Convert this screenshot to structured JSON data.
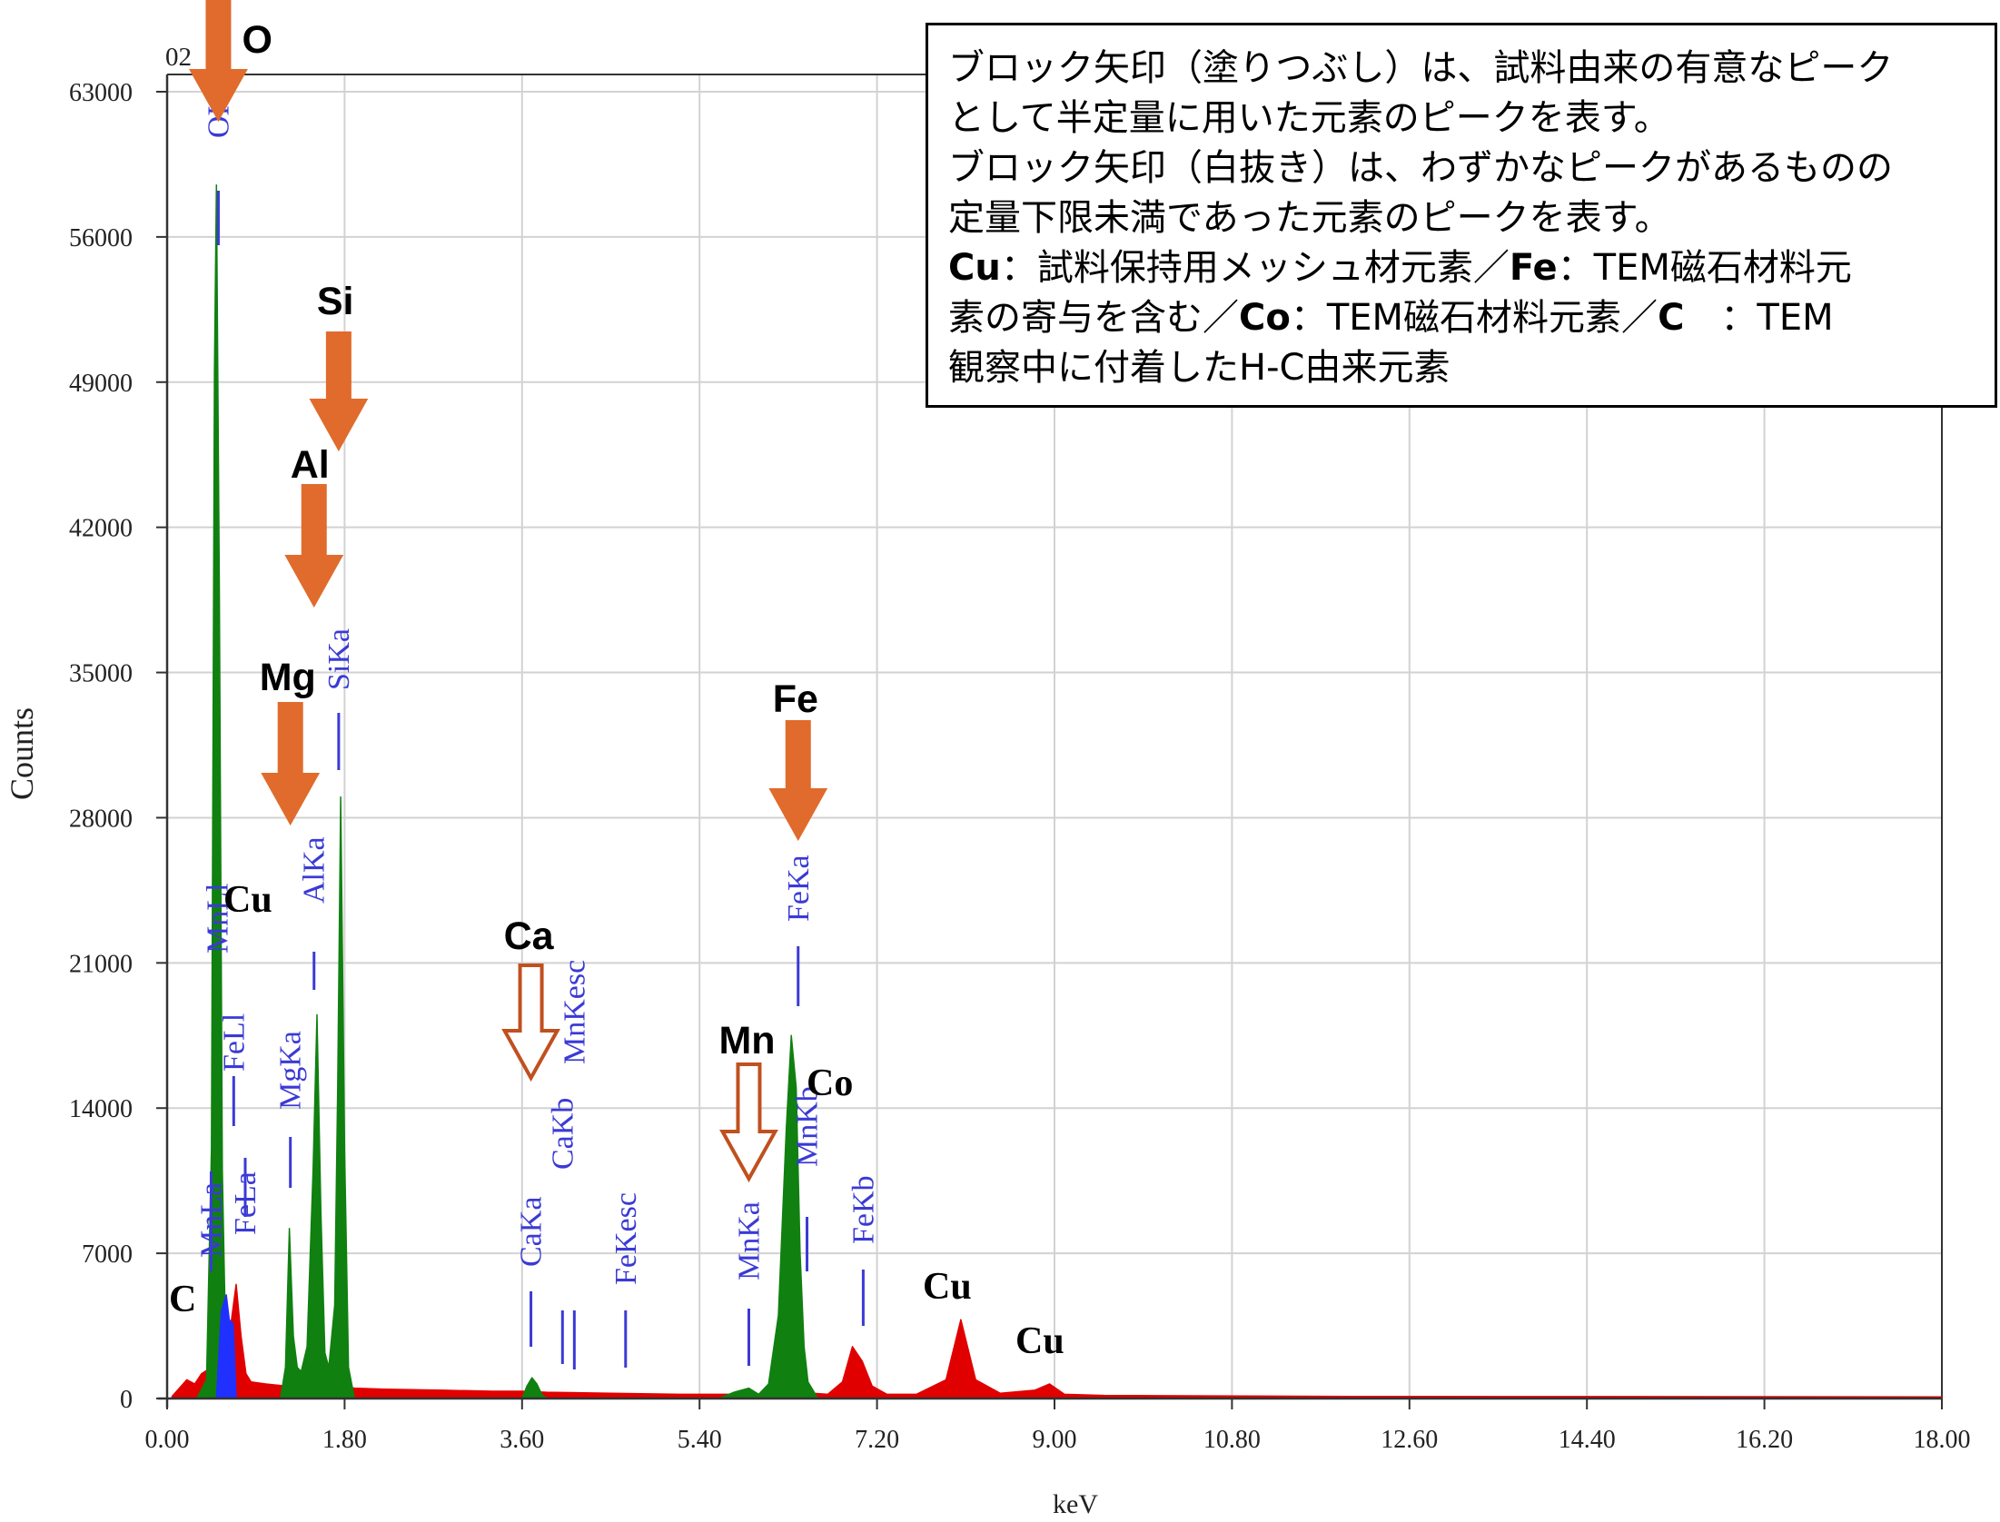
{
  "chart_data": {
    "type": "area",
    "xlabel": "keV",
    "ylabel": "Counts",
    "corner_label": "02",
    "xlim": [
      0,
      18
    ],
    "ylim": [
      0,
      63000
    ],
    "x_ticks": [
      "0.00",
      "1.80",
      "3.60",
      "5.40",
      "7.20",
      "9.00",
      "10.80",
      "12.60",
      "14.40",
      "16.20",
      "18.00"
    ],
    "y_ticks": [
      "0",
      "7000",
      "14000",
      "21000",
      "28000",
      "35000",
      "42000",
      "49000",
      "56000",
      "63000"
    ],
    "grid": true,
    "series": [
      {
        "color": "#e00000",
        "x": [
          0.05,
          0.2,
          0.28,
          0.35,
          0.45,
          0.55,
          0.62,
          0.7,
          0.75,
          0.8,
          0.85,
          1.0,
          1.2,
          1.35,
          1.55,
          1.75,
          1.9,
          2.2,
          2.8,
          3.3,
          3.6,
          3.85,
          4.5,
          5.2,
          5.7,
          5.85,
          6.0,
          6.2,
          6.35,
          6.45,
          6.55,
          6.7,
          6.85,
          6.95,
          7.05,
          7.15,
          7.3,
          7.6,
          7.9,
          8.05,
          8.2,
          8.45,
          8.8,
          8.95,
          9.1,
          9.5,
          12,
          18
        ],
        "y": [
          100,
          900,
          700,
          1200,
          1500,
          2000,
          2600,
          5500,
          3000,
          1200,
          800,
          700,
          600,
          600,
          600,
          600,
          500,
          450,
          400,
          350,
          350,
          300,
          250,
          200,
          200,
          200,
          200,
          200,
          200,
          250,
          250,
          200,
          800,
          2500,
          1800,
          600,
          200,
          200,
          900,
          3800,
          900,
          250,
          400,
          700,
          200,
          150,
          100,
          80
        ]
      },
      {
        "color": "#108010",
        "x": [
          0.3,
          0.4,
          0.45,
          0.48,
          0.5,
          0.53,
          0.56,
          0.6,
          0.65,
          0.7,
          1.15,
          1.2,
          1.24,
          1.28,
          1.32,
          1.36,
          1.42,
          1.48,
          1.52,
          1.56,
          1.6,
          1.64,
          1.7,
          1.73,
          1.76,
          1.8,
          1.84,
          1.9,
          3.6,
          3.65,
          3.7,
          3.75,
          3.8,
          3.85,
          5.6,
          5.75,
          5.9,
          6.0,
          6.1,
          6.2,
          6.28,
          6.33,
          6.38,
          6.42,
          6.46,
          6.5,
          6.6,
          6.7
        ],
        "y": [
          0,
          900,
          12000,
          49500,
          58500,
          39000,
          11000,
          1200,
          0,
          0,
          0,
          1500,
          8200,
          3000,
          1500,
          1300,
          2500,
          11000,
          18500,
          9000,
          2200,
          1500,
          4500,
          15000,
          29000,
          12000,
          1500,
          0,
          0,
          600,
          1000,
          700,
          200,
          0,
          0,
          300,
          500,
          200,
          700,
          4000,
          13000,
          17500,
          15000,
          7000,
          2500,
          800,
          0,
          0
        ]
      },
      {
        "color": "#2030ff",
        "x": [
          0.5,
          0.55,
          0.6,
          0.63,
          0.67,
          0.7
        ],
        "y": [
          0,
          4200,
          5000,
          3800,
          3600,
          0
        ]
      }
    ],
    "peak_labels": [
      {
        "text": "OKa",
        "x": 0.52
      },
      {
        "text": "MnLa",
        "x": 0.52
      },
      {
        "text": "MnLl",
        "x": 0.55
      },
      {
        "text": "FeLl",
        "x": 0.62
      },
      {
        "text": "FeLa",
        "x": 0.7
      },
      {
        "text": "MgKa",
        "x": 1.25
      },
      {
        "text": "AlKa",
        "x": 1.49
      },
      {
        "text": "SiKa",
        "x": 1.74
      },
      {
        "text": "CaKa",
        "x": 3.69
      },
      {
        "text": "CaKb",
        "x": 4.01
      },
      {
        "text": "MnKesc",
        "x": 4.13
      },
      {
        "text": "FeKesc",
        "x": 4.65
      },
      {
        "text": "MnKa",
        "x": 5.9
      },
      {
        "text": "MnKb",
        "x": 6.49
      },
      {
        "text": "FeKa",
        "x": 6.4
      },
      {
        "text": "FeKb",
        "x": 7.06
      }
    ],
    "element_markers": [
      {
        "text": "O",
        "x": 0.52,
        "filled": true,
        "color": "#e06b2c"
      },
      {
        "text": "Si",
        "x": 1.74,
        "filled": true,
        "color": "#e06b2c"
      },
      {
        "text": "Al",
        "x": 1.49,
        "filled": true,
        "color": "#e06b2c"
      },
      {
        "text": "Mg",
        "x": 1.25,
        "filled": true,
        "color": "#e06b2c"
      },
      {
        "text": "Fe",
        "x": 6.4,
        "filled": true,
        "color": "#e06b2c"
      },
      {
        "text": "Ca",
        "x": 3.69,
        "filled": false,
        "color": "#c0501f"
      },
      {
        "text": "Mn",
        "x": 5.9,
        "filled": false,
        "color": "#c0501f"
      }
    ],
    "element_labels": [
      "C",
      "Cu",
      "Co",
      "Cu",
      "Cu"
    ],
    "notes": [
      [
        "ブロック矢印（塗りつぶし）は、試料由来の有意なピーク"
      ],
      [
        "として半定量に用いた元素のピークを表す。"
      ],
      [
        "ブロック矢印（白抜き）は、わずかなピークがあるものの"
      ],
      [
        "定量下限未満であった元素のピークを表す。"
      ],
      [
        {
          "b": "Cu"
        },
        "：試料保持用メッシュ材元素／",
        {
          "b": "Fe"
        },
        "：TEM磁石材料元"
      ],
      [
        "素の寄与を含む／",
        {
          "b": "Co"
        },
        "：TEM磁石材料元素／",
        {
          "b": "C"
        },
        "　：TEM"
      ],
      [
        "観察中に付着したH-C由来元素"
      ]
    ]
  }
}
